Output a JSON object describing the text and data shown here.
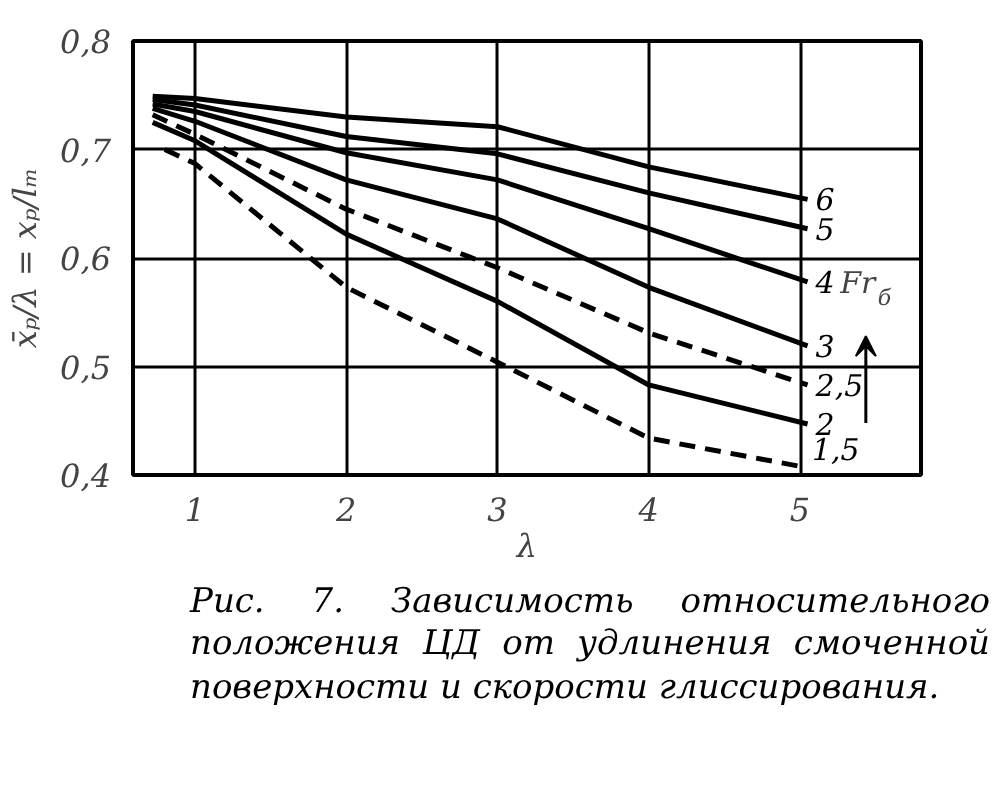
{
  "chart_data": {
    "type": "line",
    "xlabel": "λ",
    "ylabel": "x̄ₚ/λ = xₚ/lₘ",
    "xlim": [
      0.59,
      5.8
    ],
    "ylim": [
      0.4,
      0.8
    ],
    "xticks": [
      1,
      2,
      3,
      4,
      5
    ],
    "yticks": [
      {
        "value": 0.4,
        "label": "0,4"
      },
      {
        "value": 0.5,
        "label": "0,5"
      },
      {
        "value": 0.6,
        "label": "0,6"
      },
      {
        "value": 0.7,
        "label": "0,7"
      },
      {
        "value": 0.8,
        "label": "0,8"
      }
    ],
    "grid": true,
    "marker": "none",
    "series": [
      {
        "name": "6",
        "color": "#000000",
        "line_style": "solid",
        "x": [
          0.72,
          1,
          2,
          3,
          4,
          5.05
        ],
        "values": [
          0.749,
          0.747,
          0.73,
          0.721,
          0.684,
          0.654
        ]
      },
      {
        "name": "5",
        "color": "#000000",
        "line_style": "solid",
        "x": [
          0.72,
          1,
          2,
          3,
          4,
          5.05
        ],
        "values": [
          0.746,
          0.741,
          0.712,
          0.696,
          0.66,
          0.627
        ]
      },
      {
        "name": "4",
        "color": "#000000",
        "line_style": "solid",
        "x": [
          0.72,
          1,
          2,
          3,
          4,
          5.05
        ],
        "values": [
          0.742,
          0.735,
          0.697,
          0.672,
          0.627,
          0.578
        ]
      },
      {
        "name": "3",
        "color": "#000000",
        "line_style": "solid",
        "x": [
          0.72,
          1,
          2,
          3,
          4,
          5.05
        ],
        "values": [
          0.738,
          0.726,
          0.672,
          0.636,
          0.573,
          0.519
        ]
      },
      {
        "name": "2,5",
        "color": "#000000",
        "line_style": "dashed",
        "x": [
          0.72,
          1,
          2,
          3,
          4,
          5.05
        ],
        "values": [
          0.732,
          0.714,
          0.645,
          0.591,
          0.531,
          0.483
        ]
      },
      {
        "name": "2",
        "color": "#000000",
        "line_style": "solid",
        "x": [
          0.72,
          1,
          2,
          3,
          4,
          5.05
        ],
        "values": [
          0.725,
          0.708,
          0.622,
          0.56,
          0.483,
          0.447
        ]
      },
      {
        "name": "1,5",
        "color": "#000000",
        "line_style": "dashed",
        "x": [
          0.8,
          1,
          2,
          3,
          4,
          5.0
        ],
        "values": [
          0.7,
          0.687,
          0.573,
          0.504,
          0.434,
          0.408
        ]
      }
    ],
    "annotations": [
      "Fr$_{б}$",
      "Рис. 7. Зависимость относительного положения ЦД от удлинения смоченной поверхности и скорости глиссирования."
    ]
  }
}
